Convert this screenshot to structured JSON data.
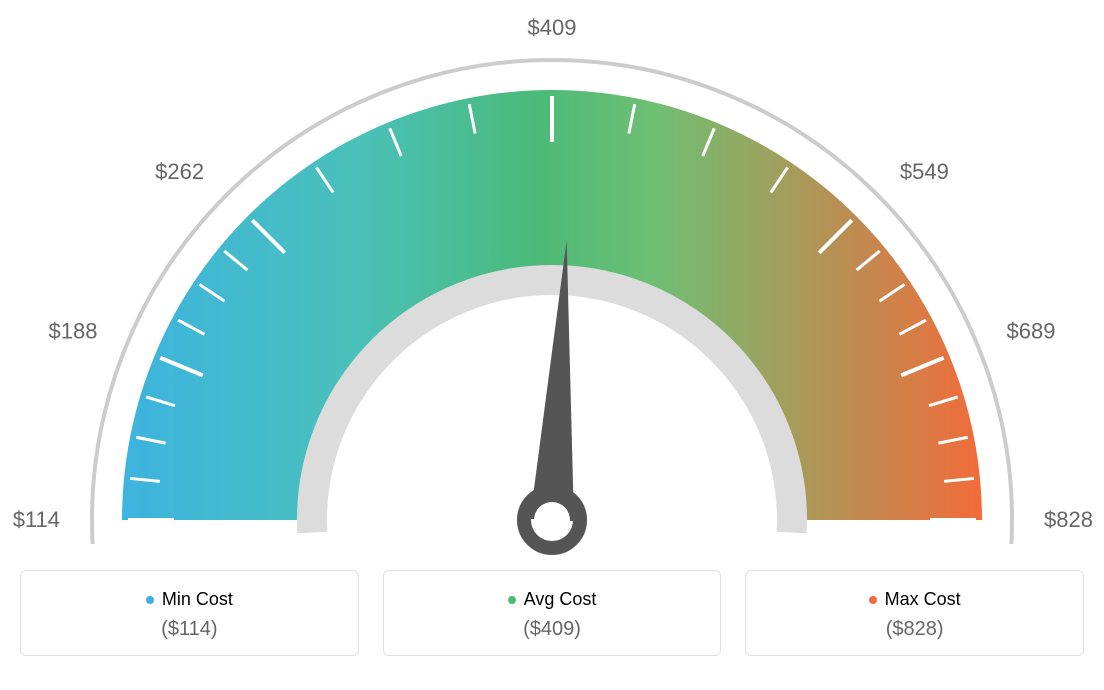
{
  "gauge": {
    "type": "gauge",
    "min_value": 114,
    "max_value": 828,
    "avg_value": 409,
    "tick_labels": [
      "$114",
      "$188",
      "$262",
      "$409",
      "$549",
      "$689",
      "$828"
    ],
    "tick_label_angles_deg": [
      -90,
      -67.5,
      -45,
      0,
      45,
      67.5,
      90
    ],
    "n_major_ticks": 7,
    "n_minor_between": 3,
    "gradient_colors": {
      "start": "#3db3e0",
      "mid1": "#4ac1b8",
      "mid2": "#4bba79",
      "mid3": "#6fbf73",
      "end": "#f26b3a"
    },
    "outer_arc_color": "#cccccc",
    "inner_arc_color": "#dcdcdc",
    "tick_color": "#ffffff",
    "needle_color": "#555555",
    "label_color": "#666666",
    "label_fontsize": 22,
    "background_color": "#ffffff",
    "needle_angle_deg": 3,
    "outer_radius": 430,
    "inner_radius": 250,
    "arc_thickness": 180,
    "outer_gray_r": 460,
    "outer_gray_width": 4,
    "inner_gray_r": 250,
    "inner_gray_width": 30
  },
  "legend": {
    "min": {
      "label": "Min Cost",
      "value": "($114)",
      "color": "#3db3e0"
    },
    "avg": {
      "label": "Avg Cost",
      "value": "($409)",
      "color": "#4bba79"
    },
    "max": {
      "label": "Max Cost",
      "value": "($828)",
      "color": "#f26b3a"
    }
  }
}
